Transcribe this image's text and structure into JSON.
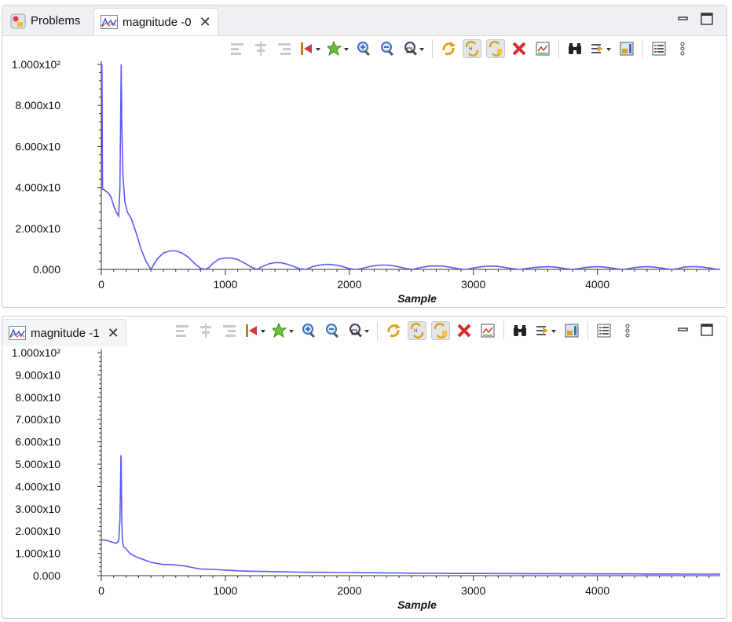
{
  "tabs_top": {
    "problems_label": "Problems",
    "magnitude0_label": "magnitude -0"
  },
  "tabs_bottom": {
    "magnitude1_label": "magnitude -1"
  },
  "colors": {
    "series": "#5b5bf5",
    "axis": "#333333"
  },
  "chart_data": [
    {
      "type": "line",
      "series": [
        {
          "values_x": [
            0,
            5,
            10,
            20,
            40,
            60,
            80,
            100,
            120,
            140,
            150,
            155,
            160,
            165,
            175,
            190,
            210,
            240,
            280,
            320,
            360,
            400,
            420,
            450,
            500,
            550,
            600,
            650,
            700,
            750,
            800,
            840,
            870,
            900,
            950,
            1000,
            1050,
            1100,
            1150,
            1200,
            1250,
            1270,
            1300,
            1350,
            1400,
            1450,
            1500,
            1550,
            1600,
            1650,
            1680,
            1700,
            1750,
            1800,
            1850,
            1900,
            1950,
            2000,
            2050,
            2100,
            2150,
            2200,
            2250,
            2300,
            2350,
            2400,
            2450,
            2500,
            2520,
            2550,
            2600,
            2650,
            2700,
            2750,
            2800,
            2850,
            2900,
            2940,
            2960,
            3000,
            3050,
            3100,
            3150,
            3200,
            3250,
            3300,
            3350,
            3380,
            3400,
            3450,
            3500,
            3550,
            3600,
            3650,
            3700,
            3750,
            3800,
            3850,
            3900,
            3950,
            4000,
            4050,
            4100,
            4150,
            4200,
            4220,
            4250,
            4300,
            4350,
            4400,
            4450,
            4500,
            4550,
            4600,
            4650,
            4680,
            4700,
            4750,
            4800,
            4850,
            4900,
            4950,
            4990
          ],
          "values_y": [
            100,
            100,
            39,
            39,
            38,
            37,
            35,
            31,
            28,
            26,
            40,
            70,
            100,
            70,
            45,
            33,
            28,
            25,
            18,
            10,
            4,
            0,
            2,
            5,
            8,
            9,
            9,
            8,
            6,
            3,
            0.5,
            0,
            1,
            3,
            5,
            5.5,
            5.5,
            4.8,
            3.2,
            1.4,
            0,
            0.5,
            1.4,
            2.7,
            3.3,
            3.2,
            2.5,
            1.4,
            0.3,
            0,
            0.7,
            1.3,
            2,
            2.4,
            2.4,
            2,
            1.3,
            0.4,
            0,
            0.4,
            1.2,
            1.8,
            2.1,
            2.1,
            1.8,
            1.2,
            0.5,
            0,
            0.1,
            0.6,
            1.2,
            1.6,
            1.7,
            1.6,
            1.2,
            0.6,
            0.1,
            0,
            0.2,
            0.7,
            1.2,
            1.5,
            1.6,
            1.4,
            1,
            0.5,
            0.1,
            0,
            0.2,
            0.6,
            1,
            1.2,
            1.3,
            1.2,
            0.8,
            0.3,
            0,
            0.4,
            0.9,
            1.2,
            1.3,
            1.2,
            0.8,
            0.3,
            0,
            0.05,
            0.4,
            0.9,
            1.2,
            1.3,
            1.2,
            0.8,
            0.3,
            0,
            0.4,
            0.8,
            1.1,
            1.3,
            1.3,
            1.1,
            0.7,
            0.2,
            0
          ]
        }
      ],
      "xlabel": "Sample",
      "xlim": [
        0,
        4990
      ],
      "ylim": [
        0,
        100
      ],
      "xticks": [
        0,
        1000,
        2000,
        3000,
        4000
      ],
      "xtick_labels": [
        "0",
        "1000",
        "2000",
        "3000",
        "4000"
      ],
      "yticks": [
        0,
        20,
        40,
        60,
        80,
        100
      ],
      "ytick_labels": [
        "0.000",
        "2.000x10",
        "4.000x10",
        "6.000x10",
        "8.000x10",
        "1.000x10²"
      ],
      "grid": false
    },
    {
      "type": "line",
      "series": [
        {
          "values_x": [
            0,
            10,
            30,
            60,
            90,
            120,
            140,
            150,
            155,
            158,
            160,
            162,
            165,
            170,
            180,
            200,
            230,
            260,
            300,
            350,
            400,
            450,
            500,
            550,
            600,
            650,
            700,
            750,
            800,
            900,
            1000,
            1100,
            1200,
            1300,
            1400,
            1500,
            1600,
            1700,
            1800,
            1900,
            2000,
            2100,
            2200,
            2300,
            2400,
            2500,
            2600,
            2700,
            2800,
            2900,
            3000,
            3100,
            3200,
            3300,
            3400,
            3500,
            3600,
            3700,
            3800,
            3900,
            4000,
            4100,
            4200,
            4300,
            4400,
            4500,
            4600,
            4700,
            4800,
            4900,
            4990
          ],
          "values_y": [
            16,
            16,
            16,
            15.5,
            15,
            14.5,
            15.5,
            25,
            42,
            54,
            52,
            40,
            25,
            16,
            13,
            12,
            10,
            9,
            8,
            7,
            6,
            5.5,
            5,
            5,
            4.8,
            4.5,
            4,
            3.5,
            3,
            2.8,
            2.5,
            2.2,
            2,
            1.9,
            1.8,
            1.7,
            1.6,
            1.5,
            1.5,
            1.4,
            1.4,
            1.3,
            1.3,
            1.2,
            1.2,
            1.1,
            1.1,
            1.1,
            1,
            1,
            1,
            1,
            0.95,
            0.95,
            0.9,
            0.9,
            0.9,
            0.85,
            0.85,
            0.85,
            0.8,
            0.8,
            0.8,
            0.8,
            0.75,
            0.75,
            0.75,
            0.7,
            0.7,
            0.7,
            0.7
          ]
        }
      ],
      "xlabel": "Sample",
      "xlim": [
        0,
        4990
      ],
      "ylim": [
        0,
        100
      ],
      "xticks": [
        0,
        1000,
        2000,
        3000,
        4000
      ],
      "xtick_labels": [
        "0",
        "1000",
        "2000",
        "3000",
        "4000"
      ],
      "yticks": [
        0,
        10,
        20,
        30,
        40,
        50,
        60,
        70,
        80,
        90,
        100
      ],
      "ytick_labels": [
        "0.000",
        "1.000x10",
        "2.000x10",
        "3.000x10",
        "4.000x10",
        "5.000x10",
        "6.000x10",
        "7.000x10",
        "8.000x10",
        "9.000x10",
        "1.000x10²"
      ],
      "grid": false
    }
  ]
}
